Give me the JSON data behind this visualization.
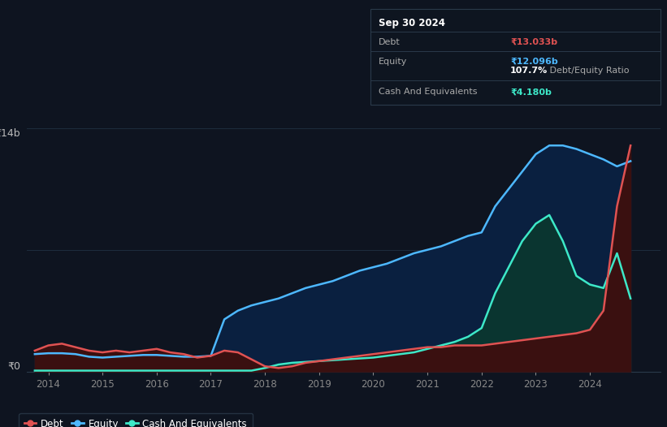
{
  "bg_color": "#0e1420",
  "plot_bg_color": "#0e1420",
  "grid_color": "#1e2d3d",
  "debt_color": "#e05252",
  "equity_color": "#4db8ff",
  "cash_color": "#3de8c8",
  "debt_fill": "#3a1010",
  "equity_fill": "#0a2040",
  "cash_fill": "#0a3530",
  "y_label_14": "₹14b",
  "y_label_0": "₹0",
  "ylim": [
    0,
    14
  ],
  "xlim_start": 2013.6,
  "xlim_end": 2025.3,
  "x_ticks": [
    2014,
    2015,
    2016,
    2017,
    2018,
    2019,
    2020,
    2021,
    2022,
    2023,
    2024
  ],
  "tooltip": {
    "date": "Sep 30 2024",
    "debt_label": "Debt",
    "debt_value": "₹13.033b",
    "equity_label": "Equity",
    "equity_value": "₹12.096b",
    "ratio_bold": "107.7%",
    "ratio_rest": " Debt/Equity Ratio",
    "cash_label": "Cash And Equivalents",
    "cash_value": "₹4.180b"
  },
  "years": [
    2013.75,
    2014.0,
    2014.25,
    2014.5,
    2014.75,
    2015.0,
    2015.25,
    2015.5,
    2015.75,
    2016.0,
    2016.25,
    2016.5,
    2016.75,
    2017.0,
    2017.25,
    2017.5,
    2017.75,
    2018.0,
    2018.25,
    2018.5,
    2018.75,
    2019.0,
    2019.25,
    2019.5,
    2019.75,
    2020.0,
    2020.25,
    2020.5,
    2020.75,
    2021.0,
    2021.25,
    2021.5,
    2021.75,
    2022.0,
    2022.25,
    2022.5,
    2022.75,
    2023.0,
    2023.25,
    2023.5,
    2023.75,
    2024.0,
    2024.25,
    2024.5,
    2024.75
  ],
  "equity": [
    1.0,
    1.05,
    1.05,
    1.0,
    0.85,
    0.8,
    0.85,
    0.9,
    0.95,
    0.95,
    0.9,
    0.85,
    0.85,
    0.9,
    3.0,
    3.5,
    3.8,
    4.0,
    4.2,
    4.5,
    4.8,
    5.0,
    5.2,
    5.5,
    5.8,
    6.0,
    6.2,
    6.5,
    6.8,
    7.0,
    7.2,
    7.5,
    7.8,
    8.0,
    9.5,
    10.5,
    11.5,
    12.5,
    13.0,
    13.0,
    12.8,
    12.5,
    12.2,
    11.8,
    12.1
  ],
  "cash": [
    0.05,
    0.05,
    0.05,
    0.05,
    0.05,
    0.05,
    0.05,
    0.05,
    0.05,
    0.05,
    0.05,
    0.05,
    0.05,
    0.05,
    0.05,
    0.05,
    0.05,
    0.2,
    0.4,
    0.5,
    0.55,
    0.6,
    0.65,
    0.7,
    0.75,
    0.8,
    0.9,
    1.0,
    1.1,
    1.3,
    1.5,
    1.7,
    2.0,
    2.5,
    4.5,
    6.0,
    7.5,
    8.5,
    9.0,
    7.5,
    5.5,
    5.0,
    4.8,
    6.8,
    4.2
  ],
  "debt": [
    1.2,
    1.5,
    1.6,
    1.4,
    1.2,
    1.1,
    1.2,
    1.1,
    1.2,
    1.3,
    1.1,
    1.0,
    0.8,
    0.9,
    1.2,
    1.1,
    0.7,
    0.3,
    0.2,
    0.3,
    0.5,
    0.6,
    0.7,
    0.8,
    0.9,
    1.0,
    1.1,
    1.2,
    1.3,
    1.4,
    1.4,
    1.5,
    1.5,
    1.5,
    1.6,
    1.7,
    1.8,
    1.9,
    2.0,
    2.1,
    2.2,
    2.4,
    3.5,
    9.5,
    13.0
  ]
}
